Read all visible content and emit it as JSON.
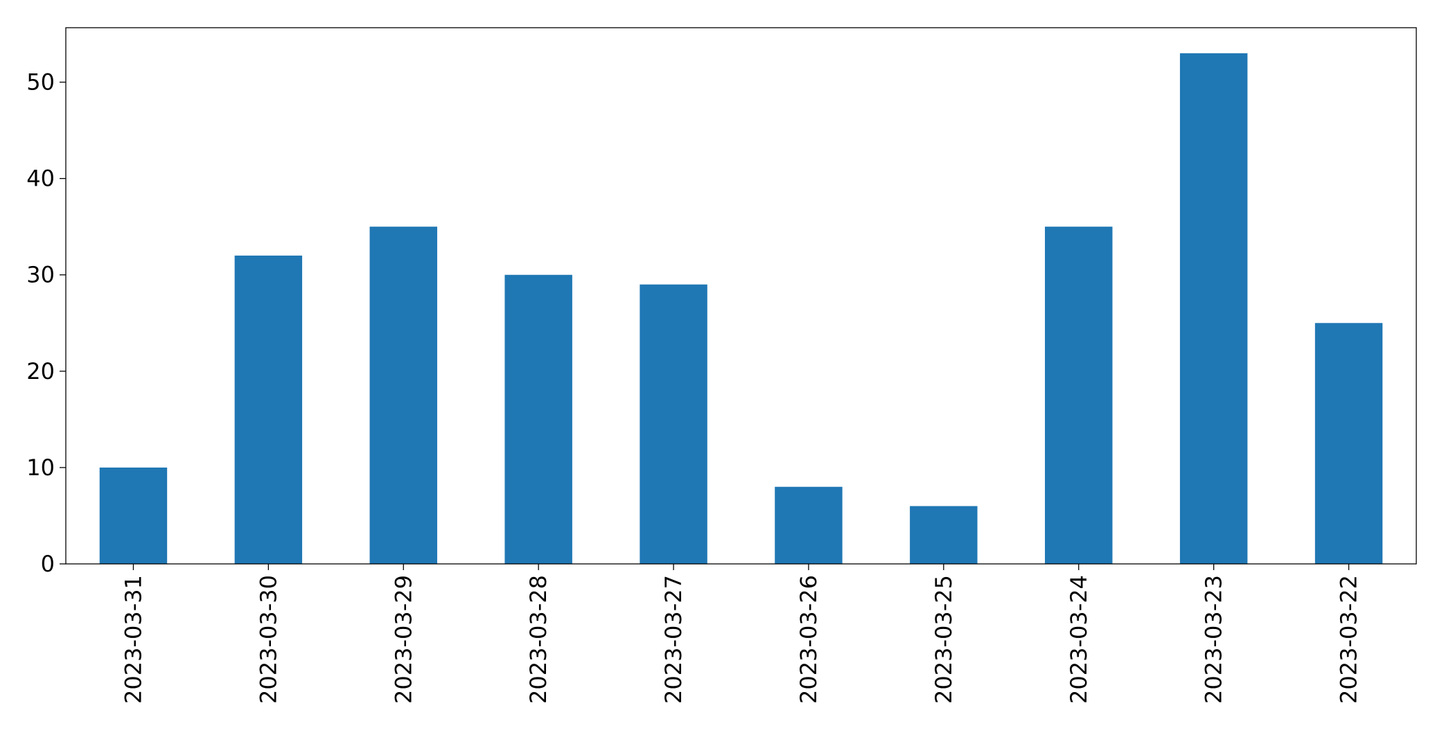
{
  "chart_data": {
    "type": "bar",
    "title": "",
    "xlabel": "",
    "ylabel": "",
    "categories": [
      "2023-03-31",
      "2023-03-30",
      "2023-03-29",
      "2023-03-28",
      "2023-03-27",
      "2023-03-26",
      "2023-03-25",
      "2023-03-24",
      "2023-03-23",
      "2023-03-22"
    ],
    "values": [
      10,
      32,
      35,
      30,
      29,
      8,
      6,
      35,
      53,
      25
    ],
    "ylim": [
      0,
      55.65
    ],
    "yticks": [
      0,
      10,
      20,
      30,
      40,
      50
    ],
    "grid": false,
    "legend": "none",
    "bar_color": "#1f77b4"
  }
}
